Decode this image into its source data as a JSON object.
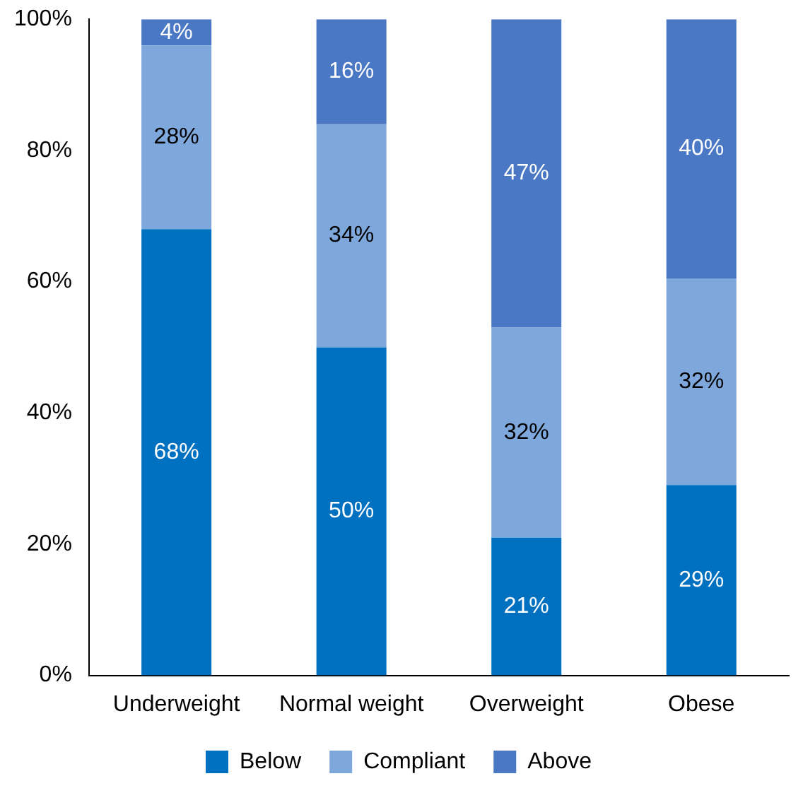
{
  "chart_data": {
    "type": "bar",
    "stacked": true,
    "categories": [
      "Underweight",
      "Normal weight",
      "Overweight",
      "Obese"
    ],
    "series": [
      {
        "name": "Below",
        "color": "#0070c0",
        "values": [
          68,
          50,
          21,
          29
        ],
        "value_labels": [
          "68%",
          "50%",
          "21%",
          "29%"
        ]
      },
      {
        "name": "Compliant",
        "color": "#7ea7db",
        "values": [
          28,
          34,
          32,
          31.5
        ],
        "value_labels": [
          "28%",
          "34%",
          "32%",
          "32%"
        ]
      },
      {
        "name": "Above",
        "color": "#4a78c4",
        "values": [
          4,
          16,
          47,
          39.5
        ],
        "value_labels": [
          "4%",
          "16%",
          "47%",
          "40%"
        ]
      }
    ],
    "ylim": [
      0,
      100
    ],
    "yticks": [
      {
        "value": 0,
        "label": "0%"
      },
      {
        "value": 20,
        "label": "20%"
      },
      {
        "value": 40,
        "label": "40%"
      },
      {
        "value": 60,
        "label": "60%"
      },
      {
        "value": 80,
        "label": "80%"
      },
      {
        "value": 100,
        "label": "100%"
      }
    ],
    "grid": false,
    "legend": "bottom"
  }
}
